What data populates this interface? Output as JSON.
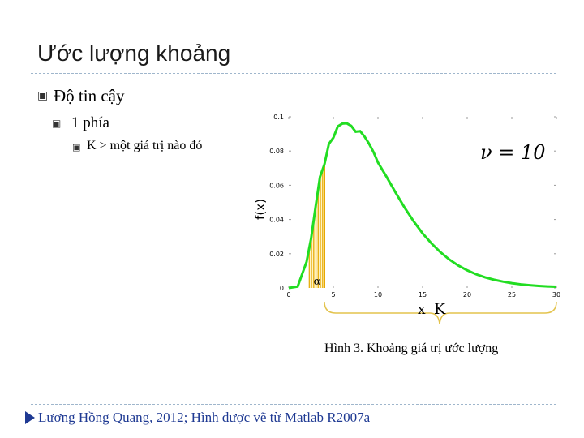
{
  "slide": {
    "title": "Ước lượng khoảng",
    "bullets": [
      {
        "level": 1,
        "text": "Độ tin cậy"
      },
      {
        "level": 2,
        "text": "1 phía"
      },
      {
        "level": 3,
        "text": "K > một giá trị nào đó"
      }
    ],
    "caption": "Hình 3. Khoảng giá trị ước lượng",
    "footer": "Lương Hồng Quang, 2012; Hình được vẽ từ Matlab R2007a",
    "bullet_icon": "square-bullet-icon",
    "colors": {
      "curve": "#22dd22",
      "shade": "#e6a800",
      "footer": "#1f3a93",
      "rule": "#9fb6cc"
    }
  },
  "chart_data": {
    "type": "line",
    "distribution": "chi-square",
    "dof_label": "ν = 10",
    "ylabel": "f(x)",
    "xlabel": "",
    "xlim": [
      0,
      30
    ],
    "ylim": [
      0,
      0.1
    ],
    "x_ticks": [
      "0",
      "5",
      "10",
      "15",
      "20",
      "25",
      "30"
    ],
    "y_ticks": [
      "0",
      "0.02",
      "0.04",
      "0.06",
      "0.08",
      "0.1"
    ],
    "series": [
      {
        "x": [
          0,
          1,
          2,
          2.5,
          3,
          3.5,
          4,
          4.5,
          5,
          5.5,
          6,
          6.5,
          7,
          7.5,
          8,
          8.5,
          9,
          9.5,
          10,
          11,
          12,
          13,
          14,
          15,
          16,
          17,
          18,
          19,
          20,
          21,
          22,
          23,
          24,
          25,
          26,
          27,
          28,
          29,
          30
        ],
        "y": [
          0,
          0.0008,
          0.0153,
          0.0287,
          0.0471,
          0.0649,
          0.0722,
          0.0842,
          0.0878,
          0.0944,
          0.096,
          0.0962,
          0.0947,
          0.0913,
          0.0916,
          0.0884,
          0.0843,
          0.0794,
          0.0733,
          0.0646,
          0.0555,
          0.0468,
          0.0389,
          0.0319,
          0.026,
          0.0209,
          0.0166,
          0.0131,
          0.0103,
          0.008,
          0.0062,
          0.0048,
          0.0037,
          0.0028,
          0.0021,
          0.0016,
          0.0012,
          0.0009,
          0.0007
        ]
      }
    ],
    "shaded_region": {
      "from": 2.3,
      "to": 4,
      "label": "α"
    },
    "brace_labels": {
      "x": "x",
      "k": "K"
    }
  }
}
